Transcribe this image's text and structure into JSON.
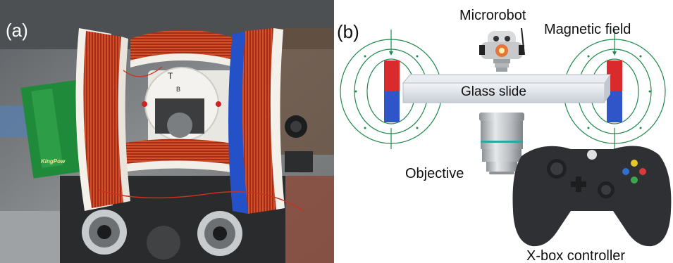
{
  "panel_a": {
    "label": "(a)",
    "pcb_text": "KingPow",
    "coil_tag_1": "T",
    "coil_tag_2": "B"
  },
  "panel_b": {
    "label": "(b)",
    "labels": {
      "microrobot": "Microrobot",
      "magnetic_field": "Magnetic field",
      "glass_slide": "Glass slide",
      "objective": "Objective",
      "controller": "X-box controller"
    }
  },
  "colors": {
    "copper": "#b8341b",
    "magnet_red": "#d92b2b",
    "magnet_blue": "#2f55c9",
    "field_line": "#1f8a4c",
    "controller": "#2e3033",
    "ring_blue": "#2450c8"
  }
}
